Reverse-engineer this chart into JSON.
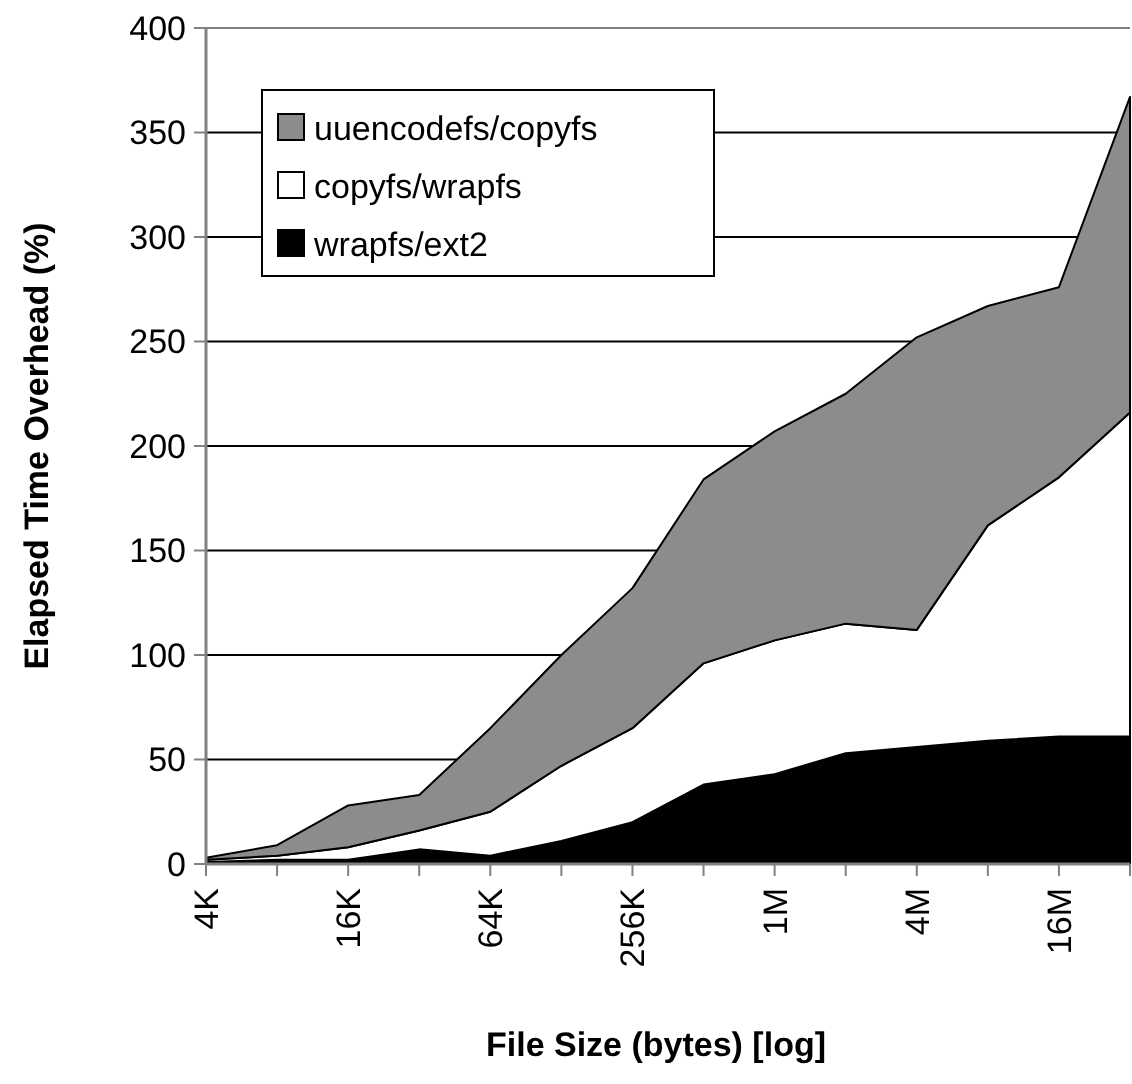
{
  "chart_data": {
    "type": "area",
    "stacked": true,
    "xlabel": "File Size (bytes) [log]",
    "ylabel": "Elapsed Time Overhead (%)",
    "categories": [
      "4K",
      null,
      "16K",
      null,
      "64K",
      null,
      "256K",
      null,
      "1M",
      null,
      "4M",
      null,
      "16M",
      null
    ],
    "series": [
      {
        "name": "wrapfs/ext2",
        "color": "#000000",
        "values": [
          1,
          2,
          2,
          7,
          4,
          11,
          20,
          38,
          43,
          53,
          56,
          59,
          61,
          61
        ]
      },
      {
        "name": "copyfs/wrapfs",
        "color": "#ffffff",
        "values": [
          1,
          2,
          6,
          9,
          21,
          36,
          45,
          58,
          64,
          62,
          56,
          103,
          124,
          155
        ]
      },
      {
        "name": "uuencodefs/copyfs",
        "color": "#8c8c8c",
        "values": [
          1,
          5,
          20,
          17,
          40,
          53,
          67,
          88,
          100,
          110,
          140,
          105,
          91,
          151
        ]
      }
    ],
    "ylim": [
      0,
      400
    ],
    "yticks": [
      0,
      50,
      100,
      150,
      200,
      250,
      300,
      350,
      400
    ],
    "grid": "y",
    "legend": "top left"
  }
}
